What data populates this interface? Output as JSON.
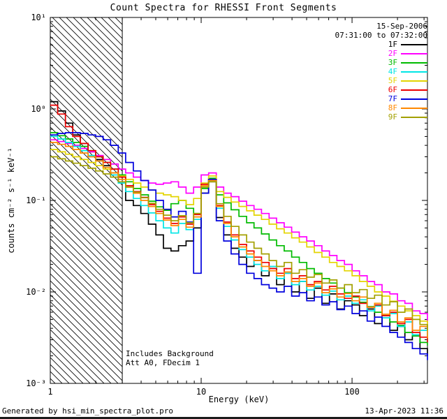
{
  "title": "Count Spectra for RHESSI Front Segments",
  "annotations": {
    "date": "15-Sep-2006",
    "interval": "07:31:00 to 07:32:00",
    "background_note": "Includes Background",
    "attenuator_note": "Att A0, FDecim 1"
  },
  "footer": {
    "left": "Generated by hsi_min_spectra_plot.pro",
    "right": "13-Apr-2023 11:36"
  },
  "axes": {
    "xlabel": "Energy (keV)",
    "ylabel": "counts cm⁻² s⁻¹ keV⁻¹",
    "x_ticks": [
      "1",
      "10",
      "100"
    ],
    "x_tick_values": [
      1,
      10,
      100
    ],
    "y_ticks": [
      "10⁻³",
      "10⁻²",
      "10⁻¹",
      "10⁰",
      "10¹"
    ],
    "y_tick_values": [
      0.001,
      0.01,
      0.1,
      1,
      10
    ]
  },
  "chart_data": {
    "type": "line",
    "title": "Count Spectra for RHESSI Front Segments",
    "xlabel": "Energy (keV)",
    "ylabel": "counts cm^-2 s^-1 keV^-1",
    "x_scale": "log",
    "y_scale": "log",
    "xlim": [
      1,
      316
    ],
    "ylim": [
      0.001,
      10
    ],
    "grid": false,
    "legend_position": "top-right-inside",
    "hatched_region_x": [
      1,
      3
    ],
    "energies": [
      1.0,
      1.12,
      1.26,
      1.41,
      1.58,
      1.78,
      2.0,
      2.24,
      2.51,
      2.82,
      3.16,
      3.55,
      3.98,
      4.47,
      5.01,
      5.62,
      6.31,
      7.08,
      7.94,
      8.91,
      10.0,
      11.2,
      12.6,
      14.1,
      15.8,
      17.8,
      20.0,
      22.4,
      25.1,
      28.2,
      31.6,
      35.5,
      39.8,
      44.7,
      50.1,
      56.2,
      63.1,
      70.8,
      79.4,
      89.1,
      100,
      112,
      126,
      141,
      158,
      178,
      200,
      224,
      251,
      282,
      316
    ],
    "series": [
      {
        "name": "1F",
        "color": "#000000",
        "values": [
          1.2,
          0.95,
          0.7,
          0.52,
          0.42,
          0.34,
          0.28,
          0.24,
          0.2,
          0.16,
          0.1,
          0.088,
          0.072,
          0.055,
          0.042,
          0.03,
          0.028,
          0.032,
          0.036,
          0.05,
          0.12,
          0.16,
          0.065,
          0.042,
          0.03,
          0.024,
          0.019,
          0.022,
          0.015,
          0.018,
          0.012,
          0.016,
          0.01,
          0.013,
          0.0085,
          0.011,
          0.0075,
          0.0095,
          0.0065,
          0.008,
          0.0072,
          0.0055,
          0.0065,
          0.0045,
          0.0052,
          0.0038,
          0.0042,
          0.003,
          0.0034,
          0.0024,
          0.002
        ]
      },
      {
        "name": "2F",
        "color": "#ff00ff",
        "values": [
          0.46,
          0.44,
          0.42,
          0.4,
          0.37,
          0.34,
          0.31,
          0.28,
          0.25,
          0.22,
          0.2,
          0.18,
          0.165,
          0.155,
          0.15,
          0.155,
          0.16,
          0.14,
          0.12,
          0.14,
          0.19,
          0.2,
          0.14,
          0.12,
          0.11,
          0.098,
          0.088,
          0.08,
          0.072,
          0.064,
          0.057,
          0.051,
          0.045,
          0.04,
          0.036,
          0.032,
          0.028,
          0.025,
          0.022,
          0.02,
          0.017,
          0.015,
          0.013,
          0.012,
          0.01,
          0.0095,
          0.008,
          0.0075,
          0.0062,
          0.0058,
          0.0046
        ]
      },
      {
        "name": "3F",
        "color": "#00bb00",
        "values": [
          0.55,
          0.51,
          0.47,
          0.43,
          0.39,
          0.35,
          0.3,
          0.26,
          0.22,
          0.19,
          0.16,
          0.135,
          0.115,
          0.098,
          0.085,
          0.078,
          0.092,
          0.1,
          0.082,
          0.072,
          0.135,
          0.175,
          0.115,
          0.094,
          0.079,
          0.067,
          0.057,
          0.05,
          0.043,
          0.037,
          0.032,
          0.028,
          0.024,
          0.021,
          0.018,
          0.016,
          0.014,
          0.0125,
          0.011,
          0.0098,
          0.0088,
          0.0077,
          0.0069,
          0.006,
          0.0055,
          0.0047,
          0.0043,
          0.0036,
          0.0033,
          0.0028,
          0.0026
        ]
      },
      {
        "name": "4F",
        "color": "#00e5e5",
        "values": [
          0.5,
          0.47,
          0.43,
          0.39,
          0.35,
          0.31,
          0.27,
          0.23,
          0.19,
          0.155,
          0.125,
          0.105,
          0.088,
          0.073,
          0.06,
          0.05,
          0.044,
          0.056,
          0.048,
          0.062,
          0.14,
          0.165,
          0.082,
          0.052,
          0.037,
          0.029,
          0.024,
          0.02,
          0.017,
          0.019,
          0.014,
          0.016,
          0.012,
          0.013,
          0.0105,
          0.0115,
          0.0092,
          0.0102,
          0.0082,
          0.009,
          0.0075,
          0.0082,
          0.0062,
          0.007,
          0.0052,
          0.0058,
          0.0042,
          0.0047,
          0.0034,
          0.0038,
          0.0028
        ]
      },
      {
        "name": "5F",
        "color": "#e3d400",
        "values": [
          0.36,
          0.34,
          0.32,
          0.3,
          0.28,
          0.26,
          0.24,
          0.22,
          0.2,
          0.185,
          0.17,
          0.155,
          0.14,
          0.13,
          0.12,
          0.115,
          0.11,
          0.1,
          0.09,
          0.105,
          0.155,
          0.185,
          0.125,
          0.108,
          0.096,
          0.086,
          0.077,
          0.069,
          0.062,
          0.055,
          0.049,
          0.044,
          0.039,
          0.035,
          0.031,
          0.027,
          0.024,
          0.021,
          0.019,
          0.017,
          0.015,
          0.013,
          0.0115,
          0.01,
          0.009,
          0.0079,
          0.007,
          0.0062,
          0.0055,
          0.0048,
          0.0042
        ]
      },
      {
        "name": "6F",
        "color": "#ee0000",
        "values": [
          1.1,
          0.88,
          0.64,
          0.5,
          0.42,
          0.35,
          0.3,
          0.26,
          0.22,
          0.18,
          0.145,
          0.125,
          0.108,
          0.09,
          0.076,
          0.064,
          0.056,
          0.066,
          0.055,
          0.07,
          0.15,
          0.17,
          0.088,
          0.058,
          0.042,
          0.033,
          0.028,
          0.024,
          0.021,
          0.018,
          0.016,
          0.018,
          0.014,
          0.015,
          0.012,
          0.013,
          0.0105,
          0.0115,
          0.0095,
          0.0085,
          0.009,
          0.0075,
          0.0068,
          0.0072,
          0.0055,
          0.006,
          0.0045,
          0.005,
          0.0036,
          0.0032,
          0.0028
        ]
      },
      {
        "name": "7F",
        "color": "#0000dd",
        "values": [
          0.52,
          0.54,
          0.55,
          0.55,
          0.54,
          0.52,
          0.5,
          0.46,
          0.4,
          0.33,
          0.26,
          0.21,
          0.165,
          0.13,
          0.1,
          0.08,
          0.066,
          0.076,
          0.058,
          0.016,
          0.12,
          0.17,
          0.06,
          0.036,
          0.026,
          0.02,
          0.016,
          0.014,
          0.012,
          0.011,
          0.01,
          0.0115,
          0.009,
          0.0098,
          0.008,
          0.0088,
          0.0072,
          0.0078,
          0.0064,
          0.007,
          0.0058,
          0.0062,
          0.0048,
          0.0053,
          0.0042,
          0.0036,
          0.0032,
          0.0028,
          0.0024,
          0.0021,
          0.0018
        ]
      },
      {
        "name": "8F",
        "color": "#ff8800",
        "values": [
          0.43,
          0.41,
          0.39,
          0.36,
          0.33,
          0.3,
          0.27,
          0.23,
          0.2,
          0.17,
          0.14,
          0.12,
          0.1,
          0.086,
          0.072,
          0.061,
          0.053,
          0.062,
          0.051,
          0.066,
          0.145,
          0.165,
          0.086,
          0.056,
          0.04,
          0.031,
          0.026,
          0.022,
          0.019,
          0.017,
          0.015,
          0.0165,
          0.013,
          0.014,
          0.0115,
          0.0125,
          0.0098,
          0.0108,
          0.0088,
          0.0096,
          0.008,
          0.0088,
          0.0068,
          0.0075,
          0.0057,
          0.0063,
          0.0047,
          0.0052,
          0.0038,
          0.0042,
          0.0031
        ]
      },
      {
        "name": "9F",
        "color": "#a3a000",
        "values": [
          0.3,
          0.285,
          0.27,
          0.255,
          0.24,
          0.225,
          0.21,
          0.195,
          0.18,
          0.16,
          0.14,
          0.123,
          0.107,
          0.093,
          0.08,
          0.069,
          0.06,
          0.068,
          0.057,
          0.072,
          0.14,
          0.16,
          0.092,
          0.067,
          0.052,
          0.042,
          0.035,
          0.03,
          0.026,
          0.022,
          0.019,
          0.021,
          0.016,
          0.0175,
          0.0145,
          0.0155,
          0.0125,
          0.0135,
          0.011,
          0.012,
          0.0098,
          0.0106,
          0.0085,
          0.0092,
          0.0072,
          0.0078,
          0.006,
          0.0065,
          0.005,
          0.0044,
          0.0038
        ]
      }
    ]
  }
}
